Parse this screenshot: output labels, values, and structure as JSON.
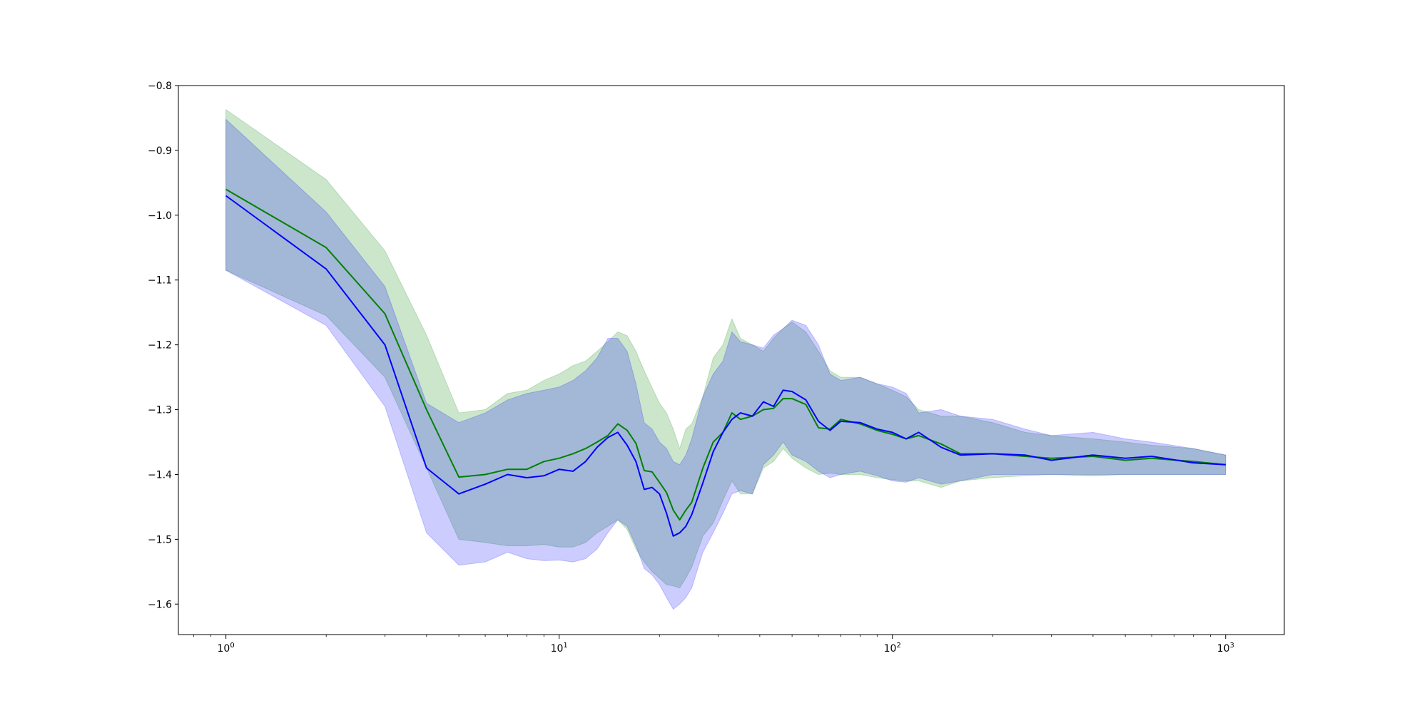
{
  "chart_data": {
    "type": "line",
    "title": "",
    "xlabel": "",
    "ylabel": "",
    "xscale": "log",
    "xlim": [
      0.72,
      1500
    ],
    "ylim": [
      -1.647,
      -0.8
    ],
    "grid": false,
    "legend": "none",
    "x_ticks": [
      {
        "base": "10",
        "exp": "0",
        "value": 1
      },
      {
        "base": "10",
        "exp": "1",
        "value": 10
      },
      {
        "base": "10",
        "exp": "2",
        "value": 100
      },
      {
        "base": "10",
        "exp": "3",
        "value": 1000
      }
    ],
    "y_ticks": [
      {
        "label": "−0.8",
        "value": -0.8
      },
      {
        "label": "−0.9",
        "value": -0.9
      },
      {
        "label": "−1.0",
        "value": -1.0
      },
      {
        "label": "−1.1",
        "value": -1.1
      },
      {
        "label": "−1.2",
        "value": -1.2
      },
      {
        "label": "−1.3",
        "value": -1.3
      },
      {
        "label": "−1.4",
        "value": -1.4
      },
      {
        "label": "−1.5",
        "value": -1.5
      },
      {
        "label": "−1.6",
        "value": -1.6
      }
    ],
    "series": [
      {
        "color": "#008000",
        "band_color": "#008000",
        "band_opacity": 0.2,
        "x": [
          1,
          2,
          3,
          4,
          5,
          6,
          7,
          8,
          9,
          10,
          11,
          12,
          13,
          14,
          15,
          16,
          17,
          18,
          19,
          20,
          21,
          22,
          23,
          24,
          25,
          27,
          29,
          31,
          33,
          35,
          38,
          41,
          44,
          47,
          50,
          55,
          60,
          65,
          70,
          80,
          90,
          100,
          110,
          120,
          140,
          160,
          200,
          250,
          300,
          400,
          500,
          600,
          800,
          1000
        ],
        "mean": [
          -0.96,
          -1.05,
          -1.152,
          -1.3,
          -1.404,
          -1.4,
          -1.392,
          -1.392,
          -1.38,
          -1.375,
          -1.368,
          -1.36,
          -1.35,
          -1.34,
          -1.322,
          -1.332,
          -1.352,
          -1.394,
          -1.396,
          -1.412,
          -1.428,
          -1.455,
          -1.47,
          -1.455,
          -1.443,
          -1.39,
          -1.35,
          -1.335,
          -1.305,
          -1.315,
          -1.31,
          -1.3,
          -1.298,
          -1.283,
          -1.283,
          -1.292,
          -1.328,
          -1.33,
          -1.315,
          -1.322,
          -1.332,
          -1.338,
          -1.345,
          -1.34,
          -1.353,
          -1.368,
          -1.368,
          -1.372,
          -1.375,
          -1.372,
          -1.378,
          -1.375,
          -1.38,
          -1.385
        ],
        "upper": [
          -0.837,
          -0.945,
          -1.055,
          -1.185,
          -1.305,
          -1.3,
          -1.275,
          -1.27,
          -1.255,
          -1.245,
          -1.232,
          -1.225,
          -1.21,
          -1.195,
          -1.18,
          -1.186,
          -1.21,
          -1.24,
          -1.266,
          -1.29,
          -1.305,
          -1.33,
          -1.36,
          -1.33,
          -1.322,
          -1.28,
          -1.22,
          -1.2,
          -1.16,
          -1.19,
          -1.2,
          -1.21,
          -1.19,
          -1.175,
          -1.165,
          -1.18,
          -1.21,
          -1.24,
          -1.25,
          -1.25,
          -1.26,
          -1.27,
          -1.28,
          -1.3,
          -1.31,
          -1.31,
          -1.32,
          -1.335,
          -1.34,
          -1.345,
          -1.35,
          -1.355,
          -1.36,
          -1.37
        ],
        "lower": [
          -1.085,
          -1.155,
          -1.25,
          -1.39,
          -1.5,
          -1.505,
          -1.51,
          -1.51,
          -1.508,
          -1.512,
          -1.512,
          -1.505,
          -1.49,
          -1.48,
          -1.47,
          -1.485,
          -1.515,
          -1.535,
          -1.55,
          -1.56,
          -1.57,
          -1.572,
          -1.575,
          -1.56,
          -1.543,
          -1.495,
          -1.475,
          -1.44,
          -1.41,
          -1.43,
          -1.43,
          -1.39,
          -1.38,
          -1.36,
          -1.375,
          -1.39,
          -1.4,
          -1.398,
          -1.4,
          -1.4,
          -1.405,
          -1.408,
          -1.41,
          -1.41,
          -1.42,
          -1.41,
          -1.405,
          -1.402,
          -1.4,
          -1.4,
          -1.4,
          -1.4,
          -1.4,
          -1.4
        ]
      },
      {
        "color": "#0000ff",
        "band_color": "#0000ff",
        "band_opacity": 0.2,
        "x": [
          1,
          2,
          3,
          4,
          5,
          6,
          7,
          8,
          9,
          10,
          11,
          12,
          13,
          14,
          15,
          16,
          17,
          18,
          19,
          20,
          21,
          22,
          23,
          24,
          25,
          27,
          29,
          31,
          33,
          35,
          38,
          41,
          44,
          47,
          50,
          55,
          60,
          65,
          70,
          80,
          90,
          100,
          110,
          120,
          140,
          160,
          200,
          250,
          300,
          400,
          500,
          600,
          800,
          1000
        ],
        "mean": [
          -0.97,
          -1.083,
          -1.2,
          -1.39,
          -1.43,
          -1.415,
          -1.4,
          -1.405,
          -1.402,
          -1.392,
          -1.395,
          -1.38,
          -1.358,
          -1.343,
          -1.335,
          -1.355,
          -1.38,
          -1.423,
          -1.42,
          -1.43,
          -1.46,
          -1.495,
          -1.49,
          -1.48,
          -1.462,
          -1.413,
          -1.365,
          -1.335,
          -1.315,
          -1.305,
          -1.31,
          -1.288,
          -1.295,
          -1.27,
          -1.272,
          -1.285,
          -1.318,
          -1.332,
          -1.318,
          -1.32,
          -1.33,
          -1.335,
          -1.345,
          -1.335,
          -1.358,
          -1.37,
          -1.368,
          -1.37,
          -1.378,
          -1.37,
          -1.375,
          -1.372,
          -1.382,
          -1.385
        ],
        "upper": [
          -0.852,
          -0.995,
          -1.11,
          -1.29,
          -1.32,
          -1.305,
          -1.285,
          -1.275,
          -1.27,
          -1.265,
          -1.255,
          -1.24,
          -1.22,
          -1.19,
          -1.19,
          -1.21,
          -1.26,
          -1.32,
          -1.33,
          -1.35,
          -1.36,
          -1.38,
          -1.385,
          -1.37,
          -1.345,
          -1.28,
          -1.245,
          -1.225,
          -1.18,
          -1.195,
          -1.2,
          -1.205,
          -1.185,
          -1.175,
          -1.162,
          -1.17,
          -1.2,
          -1.245,
          -1.255,
          -1.25,
          -1.26,
          -1.265,
          -1.275,
          -1.305,
          -1.3,
          -1.31,
          -1.315,
          -1.33,
          -1.34,
          -1.335,
          -1.345,
          -1.35,
          -1.36,
          -1.37
        ],
        "lower": [
          -1.085,
          -1.17,
          -1.295,
          -1.49,
          -1.54,
          -1.535,
          -1.52,
          -1.53,
          -1.533,
          -1.532,
          -1.535,
          -1.53,
          -1.515,
          -1.49,
          -1.47,
          -1.48,
          -1.51,
          -1.545,
          -1.555,
          -1.57,
          -1.59,
          -1.608,
          -1.6,
          -1.59,
          -1.575,
          -1.52,
          -1.49,
          -1.46,
          -1.43,
          -1.425,
          -1.43,
          -1.385,
          -1.37,
          -1.35,
          -1.37,
          -1.38,
          -1.395,
          -1.405,
          -1.4,
          -1.395,
          -1.402,
          -1.41,
          -1.412,
          -1.405,
          -1.415,
          -1.41,
          -1.4,
          -1.4,
          -1.4,
          -1.402,
          -1.4,
          -1.4,
          -1.4,
          -1.4
        ]
      }
    ]
  }
}
